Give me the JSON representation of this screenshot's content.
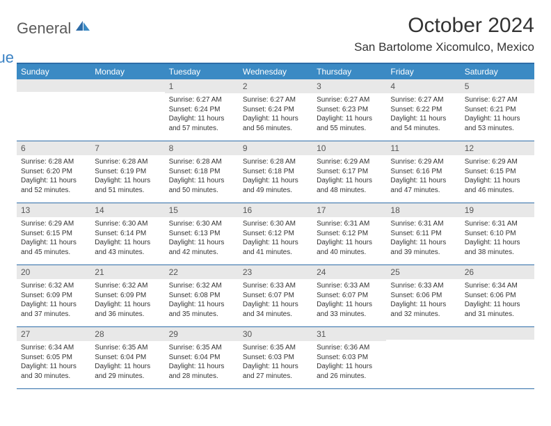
{
  "logo": {
    "general": "General",
    "blue": "Blue"
  },
  "title": "October 2024",
  "location": "San Bartolome Xicomulco, Mexico",
  "colors": {
    "header_bg": "#3b8ac4",
    "border": "#2d6ca8",
    "daynum_bg": "#e8e8e8",
    "text": "#333333",
    "logo_gray": "#5a5a5a",
    "logo_blue": "#3b82c4",
    "background": "#ffffff"
  },
  "typography": {
    "title_fontsize": 30,
    "location_fontsize": 17,
    "dayhead_fontsize": 12,
    "daynum_fontsize": 12,
    "cell_fontsize": 10
  },
  "day_headers": [
    "Sunday",
    "Monday",
    "Tuesday",
    "Wednesday",
    "Thursday",
    "Friday",
    "Saturday"
  ],
  "weeks": [
    [
      {
        "n": "",
        "sr": "",
        "ss": "",
        "dl": ""
      },
      {
        "n": "",
        "sr": "",
        "ss": "",
        "dl": ""
      },
      {
        "n": "1",
        "sr": "Sunrise: 6:27 AM",
        "ss": "Sunset: 6:24 PM",
        "dl": "Daylight: 11 hours and 57 minutes."
      },
      {
        "n": "2",
        "sr": "Sunrise: 6:27 AM",
        "ss": "Sunset: 6:24 PM",
        "dl": "Daylight: 11 hours and 56 minutes."
      },
      {
        "n": "3",
        "sr": "Sunrise: 6:27 AM",
        "ss": "Sunset: 6:23 PM",
        "dl": "Daylight: 11 hours and 55 minutes."
      },
      {
        "n": "4",
        "sr": "Sunrise: 6:27 AM",
        "ss": "Sunset: 6:22 PM",
        "dl": "Daylight: 11 hours and 54 minutes."
      },
      {
        "n": "5",
        "sr": "Sunrise: 6:27 AM",
        "ss": "Sunset: 6:21 PM",
        "dl": "Daylight: 11 hours and 53 minutes."
      }
    ],
    [
      {
        "n": "6",
        "sr": "Sunrise: 6:28 AM",
        "ss": "Sunset: 6:20 PM",
        "dl": "Daylight: 11 hours and 52 minutes."
      },
      {
        "n": "7",
        "sr": "Sunrise: 6:28 AM",
        "ss": "Sunset: 6:19 PM",
        "dl": "Daylight: 11 hours and 51 minutes."
      },
      {
        "n": "8",
        "sr": "Sunrise: 6:28 AM",
        "ss": "Sunset: 6:18 PM",
        "dl": "Daylight: 11 hours and 50 minutes."
      },
      {
        "n": "9",
        "sr": "Sunrise: 6:28 AM",
        "ss": "Sunset: 6:18 PM",
        "dl": "Daylight: 11 hours and 49 minutes."
      },
      {
        "n": "10",
        "sr": "Sunrise: 6:29 AM",
        "ss": "Sunset: 6:17 PM",
        "dl": "Daylight: 11 hours and 48 minutes."
      },
      {
        "n": "11",
        "sr": "Sunrise: 6:29 AM",
        "ss": "Sunset: 6:16 PM",
        "dl": "Daylight: 11 hours and 47 minutes."
      },
      {
        "n": "12",
        "sr": "Sunrise: 6:29 AM",
        "ss": "Sunset: 6:15 PM",
        "dl": "Daylight: 11 hours and 46 minutes."
      }
    ],
    [
      {
        "n": "13",
        "sr": "Sunrise: 6:29 AM",
        "ss": "Sunset: 6:15 PM",
        "dl": "Daylight: 11 hours and 45 minutes."
      },
      {
        "n": "14",
        "sr": "Sunrise: 6:30 AM",
        "ss": "Sunset: 6:14 PM",
        "dl": "Daylight: 11 hours and 43 minutes."
      },
      {
        "n": "15",
        "sr": "Sunrise: 6:30 AM",
        "ss": "Sunset: 6:13 PM",
        "dl": "Daylight: 11 hours and 42 minutes."
      },
      {
        "n": "16",
        "sr": "Sunrise: 6:30 AM",
        "ss": "Sunset: 6:12 PM",
        "dl": "Daylight: 11 hours and 41 minutes."
      },
      {
        "n": "17",
        "sr": "Sunrise: 6:31 AM",
        "ss": "Sunset: 6:12 PM",
        "dl": "Daylight: 11 hours and 40 minutes."
      },
      {
        "n": "18",
        "sr": "Sunrise: 6:31 AM",
        "ss": "Sunset: 6:11 PM",
        "dl": "Daylight: 11 hours and 39 minutes."
      },
      {
        "n": "19",
        "sr": "Sunrise: 6:31 AM",
        "ss": "Sunset: 6:10 PM",
        "dl": "Daylight: 11 hours and 38 minutes."
      }
    ],
    [
      {
        "n": "20",
        "sr": "Sunrise: 6:32 AM",
        "ss": "Sunset: 6:09 PM",
        "dl": "Daylight: 11 hours and 37 minutes."
      },
      {
        "n": "21",
        "sr": "Sunrise: 6:32 AM",
        "ss": "Sunset: 6:09 PM",
        "dl": "Daylight: 11 hours and 36 minutes."
      },
      {
        "n": "22",
        "sr": "Sunrise: 6:32 AM",
        "ss": "Sunset: 6:08 PM",
        "dl": "Daylight: 11 hours and 35 minutes."
      },
      {
        "n": "23",
        "sr": "Sunrise: 6:33 AM",
        "ss": "Sunset: 6:07 PM",
        "dl": "Daylight: 11 hours and 34 minutes."
      },
      {
        "n": "24",
        "sr": "Sunrise: 6:33 AM",
        "ss": "Sunset: 6:07 PM",
        "dl": "Daylight: 11 hours and 33 minutes."
      },
      {
        "n": "25",
        "sr": "Sunrise: 6:33 AM",
        "ss": "Sunset: 6:06 PM",
        "dl": "Daylight: 11 hours and 32 minutes."
      },
      {
        "n": "26",
        "sr": "Sunrise: 6:34 AM",
        "ss": "Sunset: 6:06 PM",
        "dl": "Daylight: 11 hours and 31 minutes."
      }
    ],
    [
      {
        "n": "27",
        "sr": "Sunrise: 6:34 AM",
        "ss": "Sunset: 6:05 PM",
        "dl": "Daylight: 11 hours and 30 minutes."
      },
      {
        "n": "28",
        "sr": "Sunrise: 6:35 AM",
        "ss": "Sunset: 6:04 PM",
        "dl": "Daylight: 11 hours and 29 minutes."
      },
      {
        "n": "29",
        "sr": "Sunrise: 6:35 AM",
        "ss": "Sunset: 6:04 PM",
        "dl": "Daylight: 11 hours and 28 minutes."
      },
      {
        "n": "30",
        "sr": "Sunrise: 6:35 AM",
        "ss": "Sunset: 6:03 PM",
        "dl": "Daylight: 11 hours and 27 minutes."
      },
      {
        "n": "31",
        "sr": "Sunrise: 6:36 AM",
        "ss": "Sunset: 6:03 PM",
        "dl": "Daylight: 11 hours and 26 minutes."
      },
      {
        "n": "",
        "sr": "",
        "ss": "",
        "dl": ""
      },
      {
        "n": "",
        "sr": "",
        "ss": "",
        "dl": ""
      }
    ]
  ]
}
